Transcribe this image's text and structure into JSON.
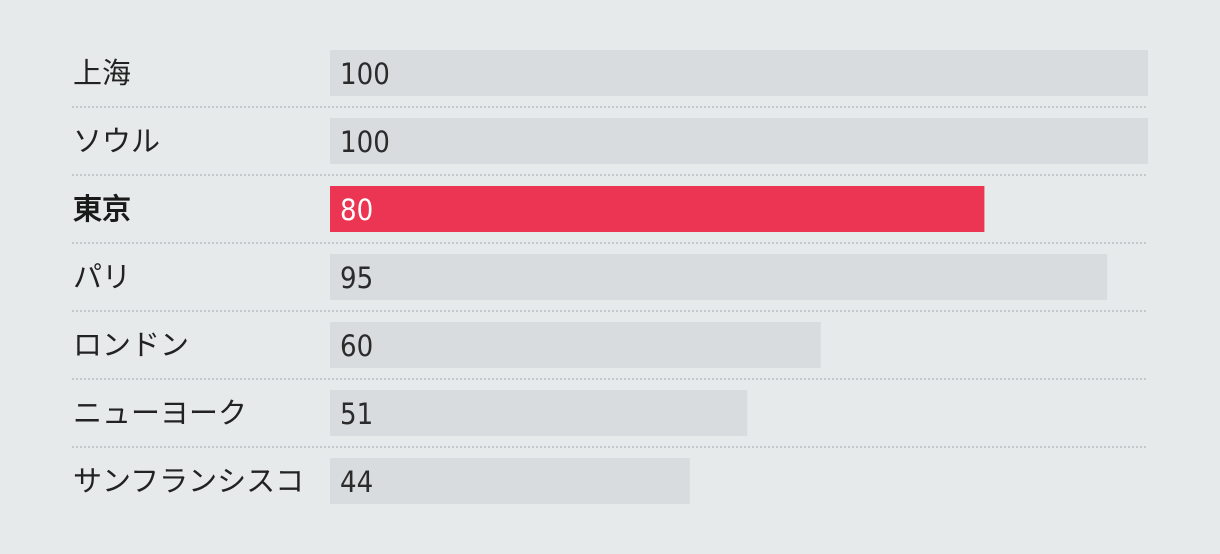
{
  "chart_data": {
    "type": "bar",
    "orientation": "horizontal",
    "categories": [
      "上海",
      "ソウル",
      "東京",
      "パリ",
      "ロンドン",
      "ニューヨーク",
      "サンフランシスコ"
    ],
    "values": [
      100,
      100,
      80,
      95,
      60,
      51,
      44
    ],
    "value_labels": [
      "100",
      "100",
      "80",
      "95",
      "60",
      "51",
      "44"
    ],
    "highlight_category": "東京",
    "xlim": [
      0,
      100
    ],
    "grid": false,
    "colors": {
      "background": "#e6eaeb",
      "bar": "#d8dcde",
      "highlight_bar": "#eb3552",
      "separator": "#b9bdbf"
    }
  }
}
